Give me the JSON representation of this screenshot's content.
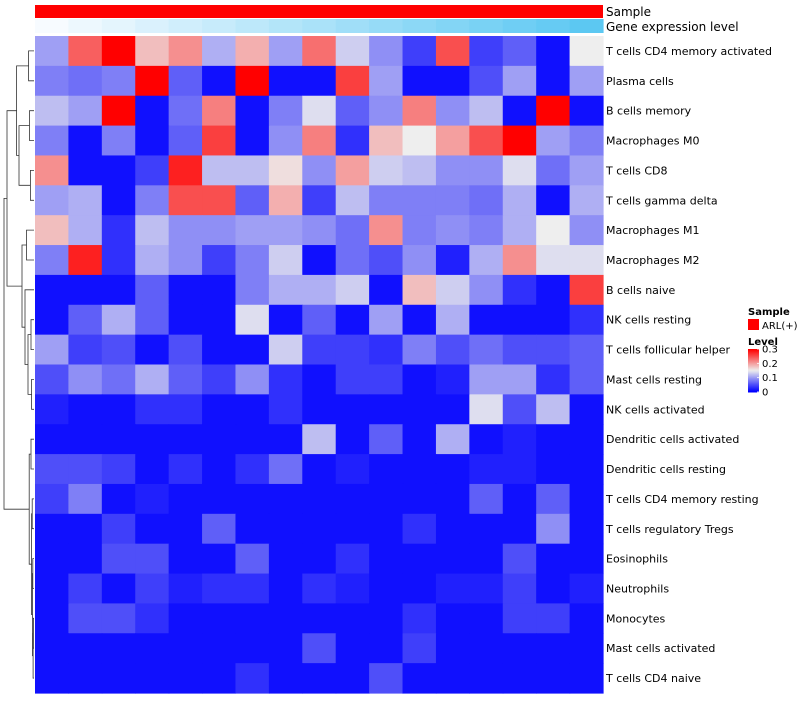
{
  "chart_data": {
    "type": "heatmap",
    "annotation_tracks": [
      {
        "label": "Sample",
        "value_labels": [
          "ARL(+)"
        ],
        "colors": [
          "#ff0000"
        ]
      },
      {
        "label": "Gene expression level",
        "gradient": [
          "#f7fbff",
          "#5cc8f2"
        ]
      }
    ],
    "rows": [
      "T cells CD4 memory activated",
      "Plasma cells",
      "B cells memory",
      "Macrophages M0",
      "T cells CD8",
      "T cells gamma delta",
      "Macrophages M1",
      "Macrophages M2",
      "B cells naive",
      "NK cells resting",
      "T cells follicular helper",
      "Mast cells resting",
      "NK cells activated",
      "Dendritic cells activated",
      "Dendritic cells resting",
      "T cells CD4 memory resting",
      "T cells regulatory  Tregs",
      "Eosinophils",
      "Neutrophils",
      "Monocytes",
      "Mast cells activated",
      "T cells CD4 naive"
    ],
    "n_columns": 17,
    "values": [
      [
        0.1,
        0.24,
        0.3,
        0.18,
        0.21,
        0.11,
        0.19,
        0.1,
        0.23,
        0.13,
        0.09,
        0.04,
        0.25,
        0.04,
        0.06,
        0.01,
        0.15
      ],
      [
        0.08,
        0.07,
        0.08,
        0.3,
        0.06,
        0.01,
        0.3,
        0.01,
        0.01,
        0.26,
        0.1,
        0.01,
        0.01,
        0.05,
        0.1,
        0.01,
        0.1
      ],
      [
        0.12,
        0.1,
        0.3,
        0.01,
        0.07,
        0.22,
        0.01,
        0.08,
        0.14,
        0.06,
        0.09,
        0.22,
        0.09,
        0.12,
        0.01,
        0.3,
        0.01
      ],
      [
        0.08,
        0.01,
        0.08,
        0.01,
        0.06,
        0.26,
        0.01,
        0.09,
        0.22,
        0.03,
        0.18,
        0.15,
        0.2,
        0.25,
        0.3,
        0.1,
        0.08
      ],
      [
        0.21,
        0.01,
        0.01,
        0.04,
        0.28,
        0.12,
        0.12,
        0.16,
        0.09,
        0.2,
        0.13,
        0.12,
        0.09,
        0.09,
        0.14,
        0.07,
        0.1
      ],
      [
        0.1,
        0.11,
        0.01,
        0.08,
        0.25,
        0.25,
        0.06,
        0.19,
        0.04,
        0.12,
        0.08,
        0.08,
        0.08,
        0.07,
        0.11,
        0.01,
        0.11
      ],
      [
        0.18,
        0.11,
        0.03,
        0.12,
        0.09,
        0.09,
        0.1,
        0.1,
        0.09,
        0.07,
        0.21,
        0.08,
        0.09,
        0.08,
        0.11,
        0.15,
        0.09
      ],
      [
        0.08,
        0.28,
        0.03,
        0.11,
        0.09,
        0.04,
        0.08,
        0.13,
        0.01,
        0.07,
        0.05,
        0.09,
        0.02,
        0.11,
        0.21,
        0.14,
        0.14
      ],
      [
        0.01,
        0.01,
        0.01,
        0.06,
        0.01,
        0.01,
        0.08,
        0.11,
        0.11,
        0.13,
        0.01,
        0.18,
        0.13,
        0.09,
        0.03,
        0.01,
        0.26
      ],
      [
        0.01,
        0.06,
        0.11,
        0.06,
        0.01,
        0.01,
        0.14,
        0.01,
        0.06,
        0.01,
        0.1,
        0.01,
        0.11,
        0.01,
        0.01,
        0.01,
        0.03
      ],
      [
        0.1,
        0.04,
        0.05,
        0.01,
        0.05,
        0.01,
        0.01,
        0.13,
        0.04,
        0.04,
        0.03,
        0.08,
        0.05,
        0.07,
        0.05,
        0.05,
        0.06
      ],
      [
        0.05,
        0.09,
        0.07,
        0.11,
        0.06,
        0.04,
        0.09,
        0.03,
        0.01,
        0.04,
        0.04,
        0.01,
        0.02,
        0.1,
        0.1,
        0.03,
        0.06
      ],
      [
        0.02,
        0.01,
        0.01,
        0.03,
        0.03,
        0.01,
        0.01,
        0.03,
        0.01,
        0.01,
        0.01,
        0.01,
        0.01,
        0.14,
        0.05,
        0.12,
        0.01
      ],
      [
        0.01,
        0.01,
        0.01,
        0.01,
        0.01,
        0.01,
        0.01,
        0.01,
        0.12,
        0.01,
        0.06,
        0.01,
        0.11,
        0.01,
        0.02,
        0.01,
        0.01
      ],
      [
        0.05,
        0.05,
        0.04,
        0.01,
        0.03,
        0.01,
        0.03,
        0.07,
        0.01,
        0.02,
        0.01,
        0.01,
        0.01,
        0.02,
        0.02,
        0.01,
        0.01
      ],
      [
        0.04,
        0.08,
        0.01,
        0.02,
        0.01,
        0.01,
        0.01,
        0.01,
        0.01,
        0.01,
        0.01,
        0.01,
        0.01,
        0.06,
        0.01,
        0.06,
        0.01
      ],
      [
        0.01,
        0.01,
        0.04,
        0.01,
        0.01,
        0.06,
        0.01,
        0.01,
        0.01,
        0.01,
        0.01,
        0.03,
        0.01,
        0.01,
        0.01,
        0.09,
        0.01
      ],
      [
        0.01,
        0.01,
        0.05,
        0.05,
        0.01,
        0.01,
        0.06,
        0.01,
        0.01,
        0.03,
        0.01,
        0.01,
        0.01,
        0.01,
        0.05,
        0.01,
        0.01
      ],
      [
        0.01,
        0.04,
        0.01,
        0.04,
        0.02,
        0.03,
        0.03,
        0.01,
        0.03,
        0.02,
        0.01,
        0.01,
        0.02,
        0.02,
        0.04,
        0.01,
        0.02
      ],
      [
        0.01,
        0.05,
        0.05,
        0.03,
        0.01,
        0.01,
        0.01,
        0.01,
        0.01,
        0.01,
        0.01,
        0.03,
        0.01,
        0.01,
        0.04,
        0.04,
        0.01
      ],
      [
        0.01,
        0.01,
        0.01,
        0.01,
        0.01,
        0.01,
        0.01,
        0.01,
        0.05,
        0.01,
        0.01,
        0.04,
        0.01,
        0.01,
        0.01,
        0.01,
        0.01
      ],
      [
        0.01,
        0.01,
        0.01,
        0.01,
        0.01,
        0.01,
        0.03,
        0.01,
        0.01,
        0.01,
        0.05,
        0.01,
        0.01,
        0.01,
        0.01,
        0.01,
        0.01
      ]
    ],
    "color_scale": {
      "label": "Level",
      "stops": [
        [
          0,
          "#0000ff"
        ],
        [
          0.15,
          "#eeeeee"
        ],
        [
          0.3,
          "#ff0000"
        ]
      ],
      "ticks": [
        "0.3",
        "0.2",
        "0.1",
        "0"
      ],
      "tick_values": [
        0.3,
        0.2,
        0.1,
        0
      ]
    },
    "legend_placement": "right",
    "row_dendrogram": true
  }
}
